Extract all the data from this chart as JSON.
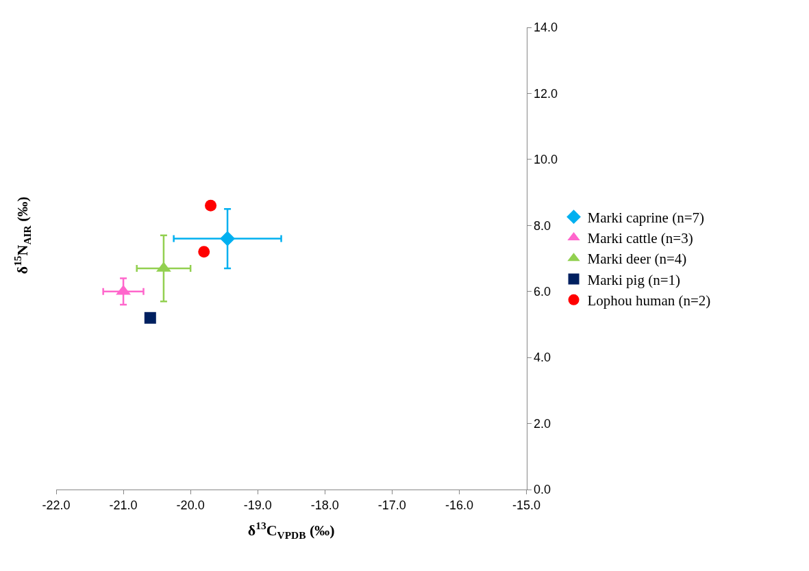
{
  "chart_data": {
    "type": "scatter",
    "xlabel": "δ$^{13}$C$_{VPDB}$ (‰)",
    "ylabel": "δ$^{15}$N$_{AIR}$ (‰)",
    "xlim": [
      -22,
      -15
    ],
    "xticks": [
      {
        "value": -22,
        "label": "-22.0"
      },
      {
        "value": -21,
        "label": "-21.0"
      },
      {
        "value": -20,
        "label": "-20.0"
      },
      {
        "value": -19,
        "label": "-19.0"
      },
      {
        "value": -18,
        "label": "-18.0"
      },
      {
        "value": -17,
        "label": "-17.0"
      },
      {
        "value": -16,
        "label": "-16.0"
      },
      {
        "value": -15,
        "label": "-15.0"
      }
    ],
    "ylim": [
      0,
      14
    ],
    "yticks": [
      {
        "value": 0,
        "label": "0.0"
      },
      {
        "value": 2,
        "label": "2.0"
      },
      {
        "value": 4,
        "label": "4.0"
      },
      {
        "value": 6,
        "label": "6.0"
      },
      {
        "value": 8,
        "label": "8.0"
      },
      {
        "value": 10,
        "label": "10.0"
      },
      {
        "value": 12,
        "label": "12.0"
      },
      {
        "value": 14,
        "label": "14.0"
      }
    ],
    "legend": "right",
    "series": [
      {
        "name": "Marki caprine (n=7)",
        "color": "#00b0f0",
        "marker": "diamond",
        "x": [
          -19.45
        ],
        "values": [
          7.6
        ],
        "xerrors": [
          0.8
        ],
        "errors": [
          0.9
        ]
      },
      {
        "name": "Marki cattle (n=3)",
        "color": "#ff66cc",
        "marker": "triangle",
        "x": [
          -21.0
        ],
        "values": [
          6.0
        ],
        "xerrors": [
          0.3
        ],
        "errors": [
          0.4
        ]
      },
      {
        "name": "Marki deer (n=4)",
        "color": "#92d050",
        "marker": "triangle",
        "x": [
          -20.4
        ],
        "values": [
          6.7
        ],
        "xerrors": [
          0.4
        ],
        "errors": [
          1.0
        ]
      },
      {
        "name": "Marki pig (n=1)",
        "color": "#002060",
        "marker": "square",
        "x": [
          -20.6
        ],
        "values": [
          5.2
        ]
      },
      {
        "name": "Lophou human (n=2)",
        "color": "#ff0000",
        "marker": "circle",
        "x": [
          -19.7,
          -19.8
        ],
        "values": [
          8.6,
          7.2
        ]
      }
    ]
  }
}
